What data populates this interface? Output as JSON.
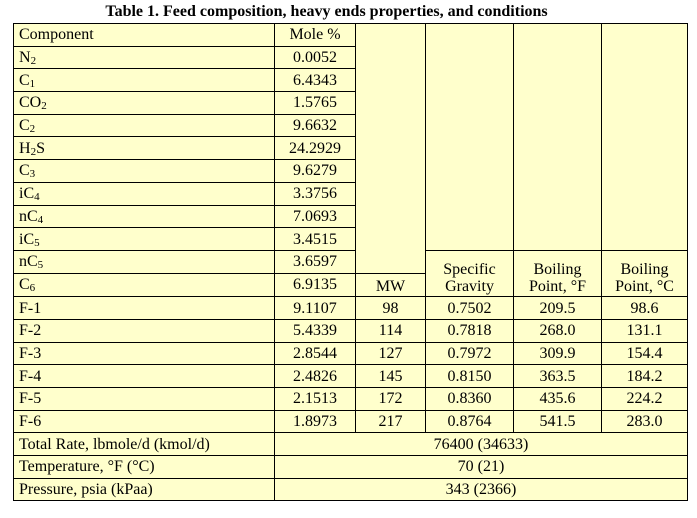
{
  "caption": "Table 1. Feed composition, heavy ends properties, and conditions",
  "headers": {
    "component": "Component",
    "mole": "Mole %",
    "mw": "MW",
    "sg_line1": "Specific",
    "sg_line2": "Gravity",
    "bpf_line1": "Boiling",
    "bpf_line2": "Point, °F",
    "bpc_line1": "Boiling",
    "bpc_line2": "Point, °C"
  },
  "light_components": [
    {
      "base": "N",
      "sub": "2",
      "mole": "0.0052"
    },
    {
      "base": "C",
      "sub": "1",
      "mole": "6.4343"
    },
    {
      "base": "CO",
      "sub": "2",
      "mole": "1.5765"
    },
    {
      "base": "C",
      "sub": "2",
      "mole": "9.6632"
    },
    {
      "base": "H",
      "sub": "2",
      "suffix": "S",
      "mole": "24.2929"
    },
    {
      "base": "C",
      "sub": "3",
      "mole": "9.6279"
    },
    {
      "base": "iC",
      "sub": "4",
      "mole": "3.3756"
    },
    {
      "base": "nC",
      "sub": "4",
      "mole": "7.0693"
    },
    {
      "base": "iC",
      "sub": "5",
      "mole": "3.4515"
    },
    {
      "base": "nC",
      "sub": "5",
      "mole": "3.6597"
    },
    {
      "base": "C",
      "sub": "6",
      "mole": "6.9135"
    }
  ],
  "heavy_ends": [
    {
      "name": "F-1",
      "mole": "9.1107",
      "mw": "98",
      "sg": "0.7502",
      "bp_f": "209.5",
      "bp_c": "98.6"
    },
    {
      "name": "F-2",
      "mole": "5.4339",
      "mw": "114",
      "sg": "0.7818",
      "bp_f": "268.0",
      "bp_c": "131.1"
    },
    {
      "name": "F-3",
      "mole": "2.8544",
      "mw": "127",
      "sg": "0.7972",
      "bp_f": "309.9",
      "bp_c": "154.4"
    },
    {
      "name": "F-4",
      "mole": "2.4826",
      "mw": "145",
      "sg": "0.8150",
      "bp_f": "363.5",
      "bp_c": "184.2"
    },
    {
      "name": "F-5",
      "mole": "2.1513",
      "mw": "172",
      "sg": "0.8360",
      "bp_f": "435.6",
      "bp_c": "224.2"
    },
    {
      "name": "F-6",
      "mole": "1.8973",
      "mw": "217",
      "sg": "0.8764",
      "bp_f": "541.5",
      "bp_c": "283.0"
    }
  ],
  "conditions": [
    {
      "label": "Total Rate, lbmole/d (kmol/d)",
      "value": "76400 (34633)"
    },
    {
      "label": "Temperature, °F (°C)",
      "value": "70 (21)"
    },
    {
      "label": "Pressure, psia (kPaa)",
      "value": "343 (2366)"
    }
  ]
}
